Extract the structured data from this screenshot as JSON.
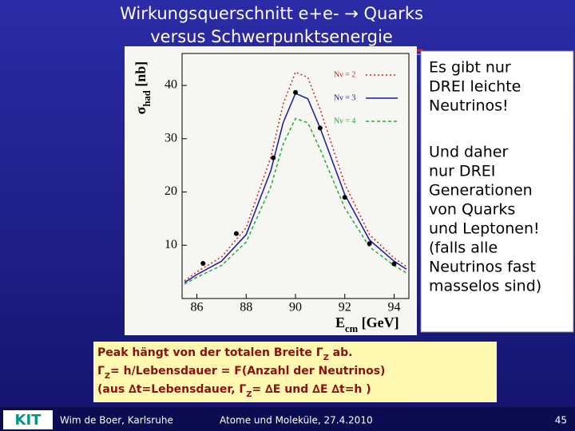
{
  "slide": {
    "title_lines": [
      "Wirkungsquerschnitt e+e- → Quarks",
      "versus Schwerpunktsenergie"
    ],
    "side_paragraphs": [
      [
        "Es gibt nur",
        "DREI leichte",
        "Neutrinos!"
      ],
      [
        "Und daher",
        "nur DREI",
        "Generationen",
        "von Quarks",
        "und Leptonen!",
        "(falls alle",
        "Neutrinos fast",
        "masselos sind)"
      ]
    ],
    "note_lines": [
      [
        "Peak hängt von der totalen Breite Γ",
        "Z",
        " ab."
      ],
      [
        "Γ",
        "Z",
        "= h/Lebensdauer = F(Anzahl der Neutrinos)"
      ],
      [
        "(aus ∆t=Lebensdauer, Γ",
        "Z",
        "= ∆E und ∆E ∆t=h )"
      ]
    ],
    "logo": "KIT",
    "footer_author": "Wim de Boer, Karlsruhe",
    "footer_event": "Atome und Moleküle, 27.4.2010",
    "page_number": "45"
  },
  "chart_data": {
    "type": "line",
    "x_label": [
      "E",
      "cm",
      " [GeV]"
    ],
    "y_label": [
      "σ",
      "had",
      " [nb]"
    ],
    "xlim": [
      85.4,
      94.6
    ],
    "xticks": [
      86,
      88,
      90,
      92,
      94
    ],
    "ylim": [
      0,
      46
    ],
    "yticks": [
      10,
      20,
      30,
      40
    ],
    "x": [
      85.5,
      86,
      87,
      88,
      89,
      89.5,
      90,
      90.5,
      91,
      92,
      93,
      94,
      94.5
    ],
    "series": [
      {
        "name": "Nν = 2",
        "color": "#cc2222",
        "dash": "2,3",
        "values": [
          3.3,
          5,
          7.8,
          13.3,
          26.5,
          36.5,
          42.5,
          41.5,
          35.5,
          21.5,
          12,
          7.6,
          6
        ]
      },
      {
        "name": "Nν = 3",
        "color": "#1a1a99",
        "dash": "none",
        "values": [
          3,
          4.5,
          7,
          12,
          24,
          33,
          38.5,
          37.5,
          32,
          19.5,
          11,
          7,
          5.5
        ]
      },
      {
        "name": "Nν = 4",
        "color": "#22aa44",
        "dash": "4,3",
        "values": [
          2.7,
          4,
          6.2,
          10.6,
          21,
          29,
          33.8,
          33,
          28,
          17,
          9.7,
          6.2,
          4.8
        ]
      }
    ],
    "points": {
      "color": "#000000",
      "x": [
        86.25,
        87.6,
        89.1,
        90,
        91,
        92,
        93,
        94
      ],
      "values": [
        6.6,
        12.2,
        26.4,
        38.7,
        32,
        19,
        10.3,
        6.5
      ]
    }
  }
}
